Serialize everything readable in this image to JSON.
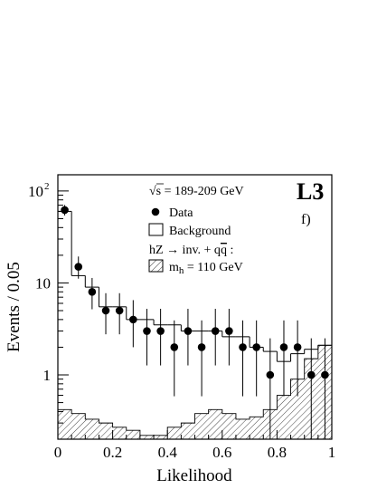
{
  "chart_data": {
    "type": "histogram",
    "xlabel": "Likelihood",
    "ylabel": "Events / 0.05",
    "xlim": [
      0,
      1
    ],
    "ylim": [
      0.2,
      150
    ],
    "yscale": "log",
    "x_ticks": [
      {
        "value": 0,
        "label": "0"
      },
      {
        "value": 0.2,
        "label": "0.2"
      },
      {
        "value": 0.4,
        "label": "0.4"
      },
      {
        "value": 0.6,
        "label": "0.6"
      },
      {
        "value": 0.8,
        "label": "0.8"
      },
      {
        "value": 1,
        "label": "1"
      }
    ],
    "y_ticks": [
      {
        "value": 1,
        "label": "1"
      },
      {
        "value": 10,
        "label": "10"
      },
      {
        "value": 100,
        "label": "10",
        "exponent": "2"
      }
    ],
    "bin_edges": [
      0,
      0.05,
      0.1,
      0.15,
      0.2,
      0.25,
      0.3,
      0.35,
      0.4,
      0.45,
      0.5,
      0.55,
      0.6,
      0.65,
      0.7,
      0.75,
      0.8,
      0.85,
      0.9,
      0.95,
      1.0
    ],
    "series": [
      {
        "name": "Background",
        "style": "histogram-outline",
        "values": [
          60,
          12,
          9,
          5.5,
          5.5,
          4,
          4,
          3.5,
          3.5,
          3,
          3,
          3,
          2.6,
          2.6,
          2,
          1.8,
          1.4,
          1.7,
          1.9,
          2.1
        ]
      },
      {
        "name": "m_h = 110 GeV",
        "style": "histogram-hatched",
        "values": [
          0.42,
          0.38,
          0.33,
          0.3,
          0.27,
          0.25,
          0.22,
          0.22,
          0.27,
          0.3,
          0.38,
          0.42,
          0.38,
          0.33,
          0.35,
          0.42,
          0.6,
          0.9,
          1.5,
          2.1
        ]
      },
      {
        "name": "Data",
        "style": "points",
        "x": [
          0.025,
          0.075,
          0.125,
          0.175,
          0.225,
          0.275,
          0.325,
          0.375,
          0.425,
          0.475,
          0.525,
          0.575,
          0.625,
          0.675,
          0.725,
          0.775,
          0.825,
          0.875,
          0.925,
          0.975
        ],
        "y": [
          62,
          15,
          8,
          5,
          5,
          4,
          3,
          3,
          2,
          3,
          2,
          3,
          3,
          2,
          2,
          1,
          2,
          2,
          1,
          1
        ]
      }
    ],
    "annotations": {
      "energy_prefix": "√s",
      "energy_text": " = 189-209 GeV",
      "experiment": "L3",
      "panel": "f)",
      "process_text": "hZ → inv. + q",
      "process_qbar": "q",
      "process_suffix": " :",
      "mass_label_m": "m",
      "mass_label_sub": "h",
      "mass_label_value": " = 110 GeV"
    },
    "legend": {
      "position": "top-right",
      "data": "Data",
      "background": "Background"
    }
  }
}
